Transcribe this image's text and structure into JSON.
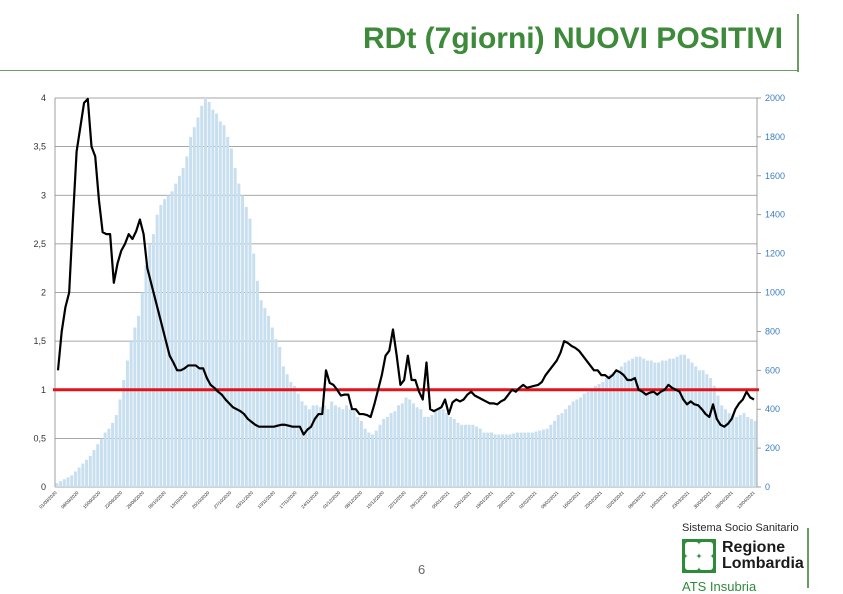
{
  "title": "RDt (7giorni) NUOVI POSITIVI",
  "page_number": "6",
  "logo": {
    "top_text": "Sistema Socio Sanitario",
    "line1": "Regione",
    "line2": "Lombardia",
    "bottom_text": "ATS Insubria"
  },
  "colors": {
    "title": "#3c8a3a",
    "rdt_line": "#000000",
    "bars": "#c8dff0",
    "threshold": "#e2141b",
    "right_axis": "#3a7ebf"
  },
  "chart_data": {
    "type": "bar",
    "x_tick_labels": [
      "01/09/2020",
      "08/09/2020",
      "15/09/2020",
      "22/09/2020",
      "29/09/2020",
      "06/10/2020",
      "13/10/2020",
      "20/10/2020",
      "27/10/2020",
      "03/11/2020",
      "10/11/2020",
      "17/11/2020",
      "24/11/2020",
      "01/12/2020",
      "08/12/2020",
      "15/12/2020",
      "22/12/2020",
      "29/12/2020",
      "05/01/2021",
      "12/01/2021",
      "19/01/2021",
      "26/01/2021",
      "02/02/2021",
      "09/02/2021",
      "16/02/2021",
      "23/02/2021",
      "02/03/2021",
      "09/03/2021",
      "16/03/2021",
      "23/03/2021",
      "30/03/2021",
      "06/04/2021",
      "13/04/2021"
    ],
    "y_left": {
      "min": 0,
      "max": 4,
      "ticks": [
        "0",
        "0,5",
        "1",
        "1,5",
        "2",
        "2,5",
        "3",
        "3,5",
        "4"
      ]
    },
    "y_right": {
      "min": 0,
      "max": 2000,
      "ticks": [
        "0",
        "200",
        "400",
        "600",
        "800",
        "1000",
        "1200",
        "1400",
        "1600",
        "1800",
        "2000"
      ]
    },
    "threshold": 1,
    "series": [
      {
        "axis": "right",
        "kind": "bar",
        "values": [
          20,
          30,
          40,
          50,
          60,
          80,
          100,
          120,
          140,
          160,
          190,
          220,
          250,
          280,
          300,
          330,
          370,
          450,
          550,
          650,
          750,
          820,
          880,
          1000,
          1140,
          1250,
          1300,
          1400,
          1450,
          1480,
          1500,
          1520,
          1560,
          1600,
          1640,
          1700,
          1800,
          1850,
          1900,
          1960,
          2000,
          1980,
          1940,
          1920,
          1880,
          1860,
          1800,
          1740,
          1640,
          1560,
          1500,
          1440,
          1380,
          1200,
          1060,
          960,
          920,
          880,
          820,
          760,
          720,
          620,
          580,
          540,
          520,
          480,
          440,
          420,
          400,
          420,
          420,
          410,
          420,
          400,
          440,
          420,
          410,
          400,
          420,
          400,
          390,
          360,
          340,
          300,
          280,
          270,
          290,
          320,
          350,
          360,
          380,
          390,
          420,
          430,
          460,
          450,
          430,
          410,
          400,
          360,
          360,
          370,
          390,
          400,
          400,
          380,
          360,
          350,
          330,
          320,
          320,
          320,
          320,
          310,
          300,
          280,
          280,
          280,
          270,
          270,
          270,
          270,
          270,
          275,
          280,
          280,
          280,
          280,
          280,
          285,
          290,
          295,
          300,
          320,
          340,
          370,
          380,
          400,
          420,
          440,
          450,
          460,
          480,
          490,
          500,
          520,
          530,
          540,
          560,
          580,
          590,
          600,
          620,
          640,
          650,
          660,
          670,
          670,
          660,
          650,
          650,
          640,
          640,
          650,
          650,
          660,
          660,
          670,
          680,
          680,
          660,
          640,
          620,
          600,
          600,
          580,
          560,
          520,
          470,
          420,
          400,
          380,
          370,
          360,
          370,
          380,
          360,
          350,
          340
        ]
      },
      {
        "axis": "left",
        "kind": "line",
        "values": [
          1.2,
          1.6,
          1.85,
          2.0,
          2.75,
          3.45,
          3.7,
          3.95,
          3.99,
          3.5,
          3.4,
          2.95,
          2.62,
          2.6,
          2.6,
          2.1,
          2.3,
          2.43,
          2.5,
          2.6,
          2.55,
          2.63,
          2.75,
          2.6,
          2.25,
          2.1,
          1.95,
          1.8,
          1.65,
          1.5,
          1.35,
          1.28,
          1.2,
          1.2,
          1.22,
          1.25,
          1.25,
          1.25,
          1.22,
          1.22,
          1.12,
          1.05,
          1.02,
          0.98,
          0.95,
          0.9,
          0.86,
          0.82,
          0.8,
          0.78,
          0.75,
          0.7,
          0.67,
          0.64,
          0.62,
          0.62,
          0.62,
          0.62,
          0.62,
          0.63,
          0.64,
          0.64,
          0.63,
          0.62,
          0.62,
          0.62,
          0.54,
          0.59,
          0.62,
          0.7,
          0.75,
          0.75,
          1.2,
          1.07,
          1.05,
          1.0,
          0.94,
          0.95,
          0.95,
          0.8,
          0.8,
          0.75,
          0.75,
          0.74,
          0.72,
          0.85,
          1.0,
          1.15,
          1.35,
          1.4,
          1.62,
          1.35,
          1.05,
          1.1,
          1.35,
          1.1,
          1.1,
          0.98,
          0.9,
          1.28,
          0.8,
          0.78,
          0.8,
          0.82,
          0.9,
          0.75,
          0.87,
          0.9,
          0.88,
          0.9,
          0.95,
          0.98,
          0.94,
          0.92,
          0.9,
          0.88,
          0.86,
          0.86,
          0.85,
          0.88,
          0.9,
          0.95,
          1.0,
          0.98,
          1.02,
          1.05,
          1.02,
          1.03,
          1.04,
          1.05,
          1.08,
          1.15,
          1.2,
          1.25,
          1.3,
          1.38,
          1.5,
          1.48,
          1.45,
          1.43,
          1.4,
          1.35,
          1.3,
          1.25,
          1.2,
          1.2,
          1.15,
          1.15,
          1.12,
          1.15,
          1.2,
          1.18,
          1.15,
          1.1,
          1.1,
          1.12,
          1.0,
          0.98,
          0.95,
          0.97,
          0.98,
          0.95,
          0.98,
          1.0,
          1.05,
          1.02,
          1.0,
          0.98,
          0.9,
          0.85,
          0.88,
          0.85,
          0.84,
          0.8,
          0.75,
          0.72,
          0.85,
          0.7,
          0.64,
          0.62,
          0.65,
          0.7,
          0.8,
          0.86,
          0.9,
          0.98,
          0.92,
          0.9
        ]
      }
    ]
  }
}
